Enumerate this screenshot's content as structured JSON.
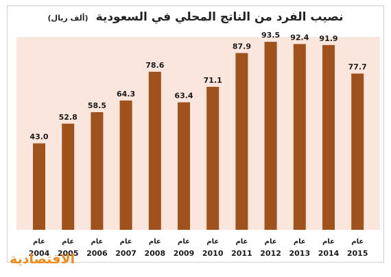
{
  "chart_data": {
    "type": "bar",
    "title": "نصيب الفرد من الناتج المحلي في السعودية",
    "unit": "(ألف ريال)",
    "categories": [
      "2004",
      "2005",
      "2006",
      "2007",
      "2008",
      "2009",
      "2010",
      "2011",
      "2012",
      "2013",
      "2014",
      "2015"
    ],
    "category_prefix": "عام",
    "values": [
      43.0,
      52.8,
      58.5,
      64.3,
      78.6,
      63.4,
      71.1,
      87.9,
      93.5,
      92.4,
      91.9,
      77.7
    ],
    "value_labels": [
      "43.0",
      "52.8",
      "58.5",
      "64.3",
      "78.6",
      "63.4",
      "71.1",
      "87.9",
      "93.5",
      "92.4",
      "91.9",
      "77.7"
    ],
    "ylim": [
      0,
      100
    ],
    "grid": false,
    "bar_color": "#a0521d",
    "plot_background": "#fbe6dd"
  },
  "logo": "الاقتصادية",
  "logo_color": "#f08a1c"
}
